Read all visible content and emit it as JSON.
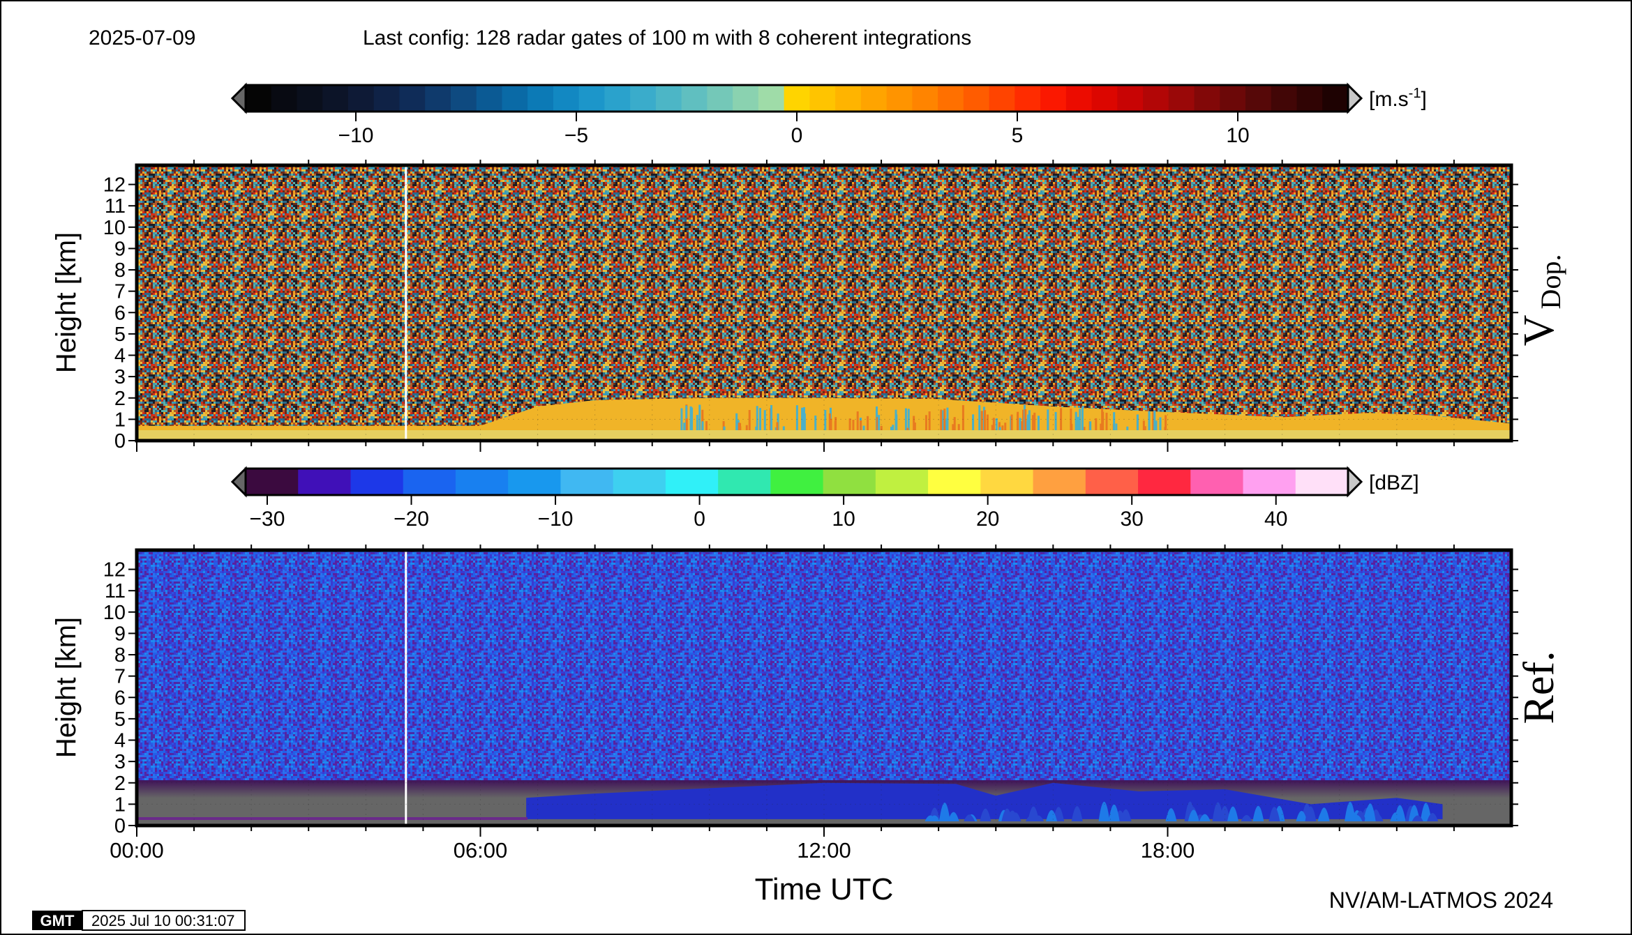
{
  "header": {
    "date": "2025-07-09",
    "config": "Last config: 128 radar gates of 100 m with 8 coherent integrations"
  },
  "colorbars": {
    "doppler": {
      "unit_prefix": "[m.s",
      "unit_exp": "-1",
      "unit_suffix": "]",
      "ticks": [
        "−10",
        "−5",
        "0",
        "5",
        "10"
      ],
      "tick_values": [
        -10,
        -5,
        0,
        5,
        10
      ],
      "range": [
        -12.5,
        12.5
      ],
      "colors": [
        "#050505",
        "#080a12",
        "#0a0f1c",
        "#0c1428",
        "#0e1a36",
        "#0f2246",
        "#0f2c58",
        "#0f3a6c",
        "#0e4a80",
        "#0b5a94",
        "#0a6aa6",
        "#0c7ab6",
        "#1288c2",
        "#1c96ca",
        "#2aa2cc",
        "#3aaccb",
        "#4cb6c6",
        "#60bfc0",
        "#74c8b8",
        "#8ad2b0",
        "#9fdca8",
        "#ffd400",
        "#ffc400",
        "#ffb400",
        "#ffa400",
        "#ff9400",
        "#ff8400",
        "#ff7000",
        "#ff5c00",
        "#ff4400",
        "#ff2c00",
        "#fb1800",
        "#ec0c00",
        "#dc0600",
        "#c80404",
        "#b20606",
        "#9a0808",
        "#820808",
        "#6c0808",
        "#560808",
        "#420606",
        "#300404",
        "#1e0202"
      ]
    },
    "reflectivity": {
      "unit": "[dBZ]",
      "ticks": [
        "−30",
        "−20",
        "−10",
        "0",
        "10",
        "20",
        "30",
        "40"
      ],
      "tick_values": [
        -30,
        -20,
        -10,
        0,
        10,
        20,
        30,
        40
      ],
      "range": [
        -31.5,
        45
      ],
      "colors": [
        "#3b0a3f",
        "#4010b8",
        "#1d38e8",
        "#1a64f0",
        "#1880f0",
        "#1898ee",
        "#40b8f2",
        "#3ed0f0",
        "#30f0f8",
        "#30e8b0",
        "#40f040",
        "#90e040",
        "#c0f040",
        "#ffff40",
        "#ffd840",
        "#ffa040",
        "#ff6048",
        "#ff2840",
        "#ff60b0",
        "#ffa0f0",
        "#ffe0f8"
      ]
    }
  },
  "panels": [
    {
      "label_main": "V",
      "label_sub": "Dop.",
      "ylabel": "Height [km]",
      "y_ticks": [
        "0",
        "1",
        "2",
        "3",
        "4",
        "5",
        "6",
        "7",
        "8",
        "9",
        "10",
        "11",
        "12"
      ]
    },
    {
      "label_main": "Ref.",
      "label_sub": "",
      "ylabel": "Height [km]",
      "y_ticks": [
        "0",
        "1",
        "2",
        "3",
        "4",
        "5",
        "6",
        "7",
        "8",
        "9",
        "10",
        "11",
        "12"
      ]
    }
  ],
  "x_axis": {
    "label": "Time UTC",
    "ticks": [
      "00:00",
      "06:00",
      "12:00",
      "18:00"
    ]
  },
  "footer": {
    "credit": "NV/AM-LATMOS 2024",
    "gmt_logo": "GMT",
    "timestamp": "2025 Jul 10 00:31:07"
  },
  "chart_data": [
    {
      "type": "heatmap",
      "title": "V Dop.",
      "xlabel": "Time UTC",
      "ylabel": "Height [km]",
      "xlim": [
        0,
        24
      ],
      "ylim": [
        0,
        12.9
      ],
      "colorbar_unit": "m.s-1",
      "colorbar_range": [
        -12.5,
        12.5
      ],
      "data_gap_hours": [
        4.7
      ],
      "signal_top_km": {
        "x": [
          0,
          6,
          7,
          8,
          10,
          12,
          14,
          16,
          17.5,
          20,
          21.5,
          22.5,
          24
        ],
        "y": [
          0.7,
          0.7,
          1.6,
          1.9,
          2.0,
          2.0,
          1.95,
          1.6,
          1.4,
          1.1,
          1.3,
          1.2,
          0.8
        ]
      }
    },
    {
      "type": "heatmap",
      "title": "Ref.",
      "xlabel": "Time UTC",
      "ylabel": "Height [km]",
      "xlim": [
        0,
        24
      ],
      "ylim": [
        0,
        12.9
      ],
      "colorbar_unit": "dBZ",
      "colorbar_range": [
        -31.5,
        45
      ],
      "data_gap_hours": [
        4.7
      ],
      "cloud_top_km": {
        "x": [
          6.8,
          8,
          10,
          12,
          14.3,
          15,
          16,
          17.5,
          19,
          20.5,
          22,
          22.8
        ],
        "y": [
          1.3,
          1.5,
          1.75,
          2.0,
          1.95,
          1.4,
          2.0,
          1.6,
          1.7,
          1.0,
          1.3,
          1.0
        ]
      }
    }
  ]
}
